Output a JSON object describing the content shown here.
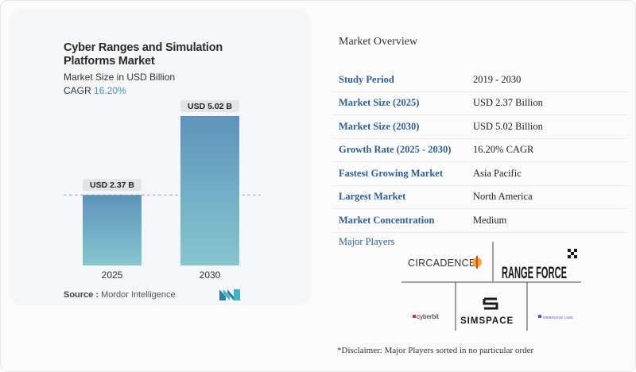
{
  "chart_data": {
    "type": "bar",
    "title": "Cyber Ranges and Simulation Platforms Market",
    "subtitle": "Market Size in USD Billion",
    "cagr_label": "CAGR",
    "cagr_value": "16.20%",
    "categories": [
      "2025",
      "2030"
    ],
    "values": [
      2.37,
      5.02
    ],
    "data_labels": [
      "USD 2.37 B",
      "USD 5.02 B"
    ],
    "reference_line": "dashed line at the 2025 value",
    "colors": {
      "bar_top": "#5e93bb",
      "bar_bottom": "#86c6cf"
    }
  },
  "source": {
    "label": "Source :",
    "name": "Mordor Intelligence"
  },
  "overview": {
    "title": "Market Overview",
    "rows": [
      {
        "key": "Study Period",
        "value": "2019 - 2030"
      },
      {
        "key": "Market Size (2025)",
        "value": "USD 2.37 Billion"
      },
      {
        "key": "Market Size (2030)",
        "value": "USD 5.02 Billion"
      },
      {
        "key": "Growth Rate (2025 - 2030)",
        "value": "16.20% CAGR"
      },
      {
        "key": "Fastest Growing Market",
        "value": "Asia Pacific"
      },
      {
        "key": "Largest Market",
        "value": "North America"
      },
      {
        "key": "Market Concentration",
        "value": "Medium"
      }
    ]
  },
  "players": {
    "title": "Major Players",
    "logos": [
      "CIRCADENCE",
      "RANGE FORCE",
      "cyberbit",
      "SIMSPACE",
      "IMMERSIVE LABS"
    ]
  },
  "disclaimer": "*Disclaimer: Major Players sorted in no particular order"
}
